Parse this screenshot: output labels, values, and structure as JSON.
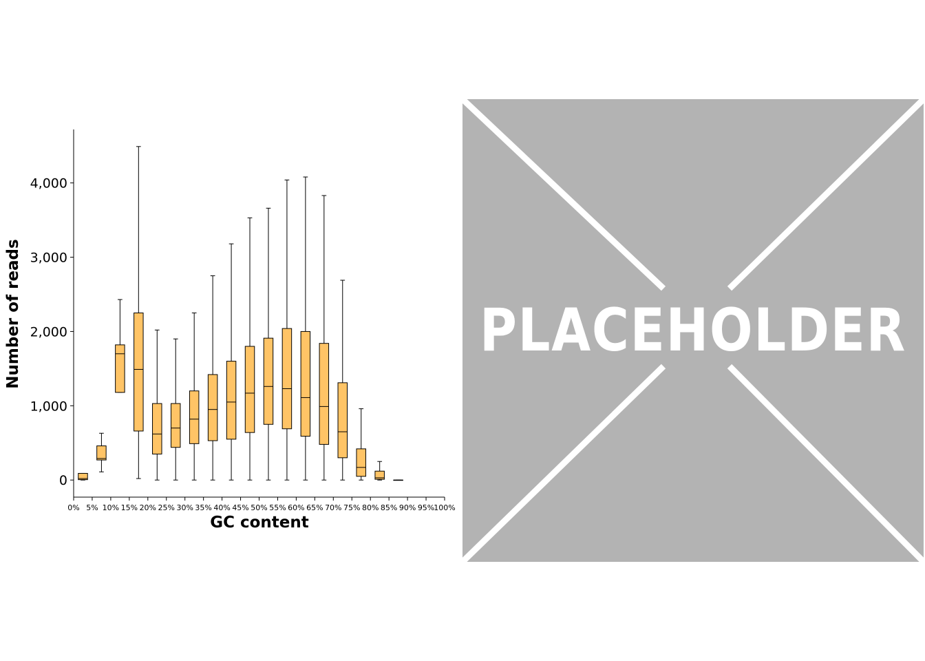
{
  "chart_data": {
    "type": "boxplot",
    "xlabel": "GC content",
    "ylabel": "Number of reads",
    "x_tick_labels": [
      "0%",
      "5%",
      "10%",
      "15%",
      "20%",
      "25%",
      "30%",
      "35%",
      "40%",
      "45%",
      "50%",
      "55%",
      "60%",
      "65%",
      "70%",
      "75%",
      "80%",
      "85%",
      "90%",
      "95%",
      "100%"
    ],
    "y_ticks": [
      0,
      1000,
      2000,
      3000,
      4000
    ],
    "y_tick_labels": [
      "0",
      "1,000",
      "2,000",
      "3,000",
      "4,000"
    ],
    "ylim": [
      -230,
      4720
    ],
    "xlim": [
      0,
      100
    ],
    "box_color": "#ffc466",
    "boxes": [
      {
        "bin": "0-5%",
        "min": 0,
        "q1": 5,
        "median": 20,
        "q3": 90,
        "max": 90
      },
      {
        "bin": "5-10%",
        "min": 110,
        "q1": 270,
        "median": 290,
        "q3": 460,
        "max": 630
      },
      {
        "bin": "10-15%",
        "min": 1180,
        "q1": 1180,
        "median": 1700,
        "q3": 1820,
        "max": 2430
      },
      {
        "bin": "15-20%",
        "min": 20,
        "q1": 660,
        "median": 1490,
        "q3": 2250,
        "max": 4490
      },
      {
        "bin": "20-25%",
        "min": 0,
        "q1": 350,
        "median": 620,
        "q3": 1030,
        "max": 2020
      },
      {
        "bin": "25-30%",
        "min": 0,
        "q1": 440,
        "median": 700,
        "q3": 1030,
        "max": 1900
      },
      {
        "bin": "30-35%",
        "min": 0,
        "q1": 490,
        "median": 820,
        "q3": 1200,
        "max": 2250
      },
      {
        "bin": "35-40%",
        "min": 0,
        "q1": 530,
        "median": 950,
        "q3": 1420,
        "max": 2750
      },
      {
        "bin": "40-45%",
        "min": 0,
        "q1": 550,
        "median": 1050,
        "q3": 1600,
        "max": 3180
      },
      {
        "bin": "45-50%",
        "min": 0,
        "q1": 640,
        "median": 1170,
        "q3": 1800,
        "max": 3530
      },
      {
        "bin": "50-55%",
        "min": 0,
        "q1": 750,
        "median": 1260,
        "q3": 1910,
        "max": 3660
      },
      {
        "bin": "55-60%",
        "min": 0,
        "q1": 690,
        "median": 1230,
        "q3": 2040,
        "max": 4040
      },
      {
        "bin": "60-65%",
        "min": 0,
        "q1": 590,
        "median": 1110,
        "q3": 2000,
        "max": 4080
      },
      {
        "bin": "65-70%",
        "min": 0,
        "q1": 480,
        "median": 990,
        "q3": 1840,
        "max": 3830
      },
      {
        "bin": "70-75%",
        "min": 0,
        "q1": 300,
        "median": 650,
        "q3": 1310,
        "max": 2690
      },
      {
        "bin": "75-80%",
        "min": 0,
        "q1": 50,
        "median": 170,
        "q3": 420,
        "max": 960
      },
      {
        "bin": "80-85%",
        "min": 0,
        "q1": 10,
        "median": 30,
        "q3": 120,
        "max": 250
      },
      {
        "bin": "85-90%",
        "min": 0,
        "q1": 0,
        "median": 0,
        "q3": 0,
        "max": 0
      }
    ]
  },
  "placeholder": {
    "text": "PLACEHOLDER",
    "background": "#b3b3b3",
    "line_color": "#ffffff"
  }
}
